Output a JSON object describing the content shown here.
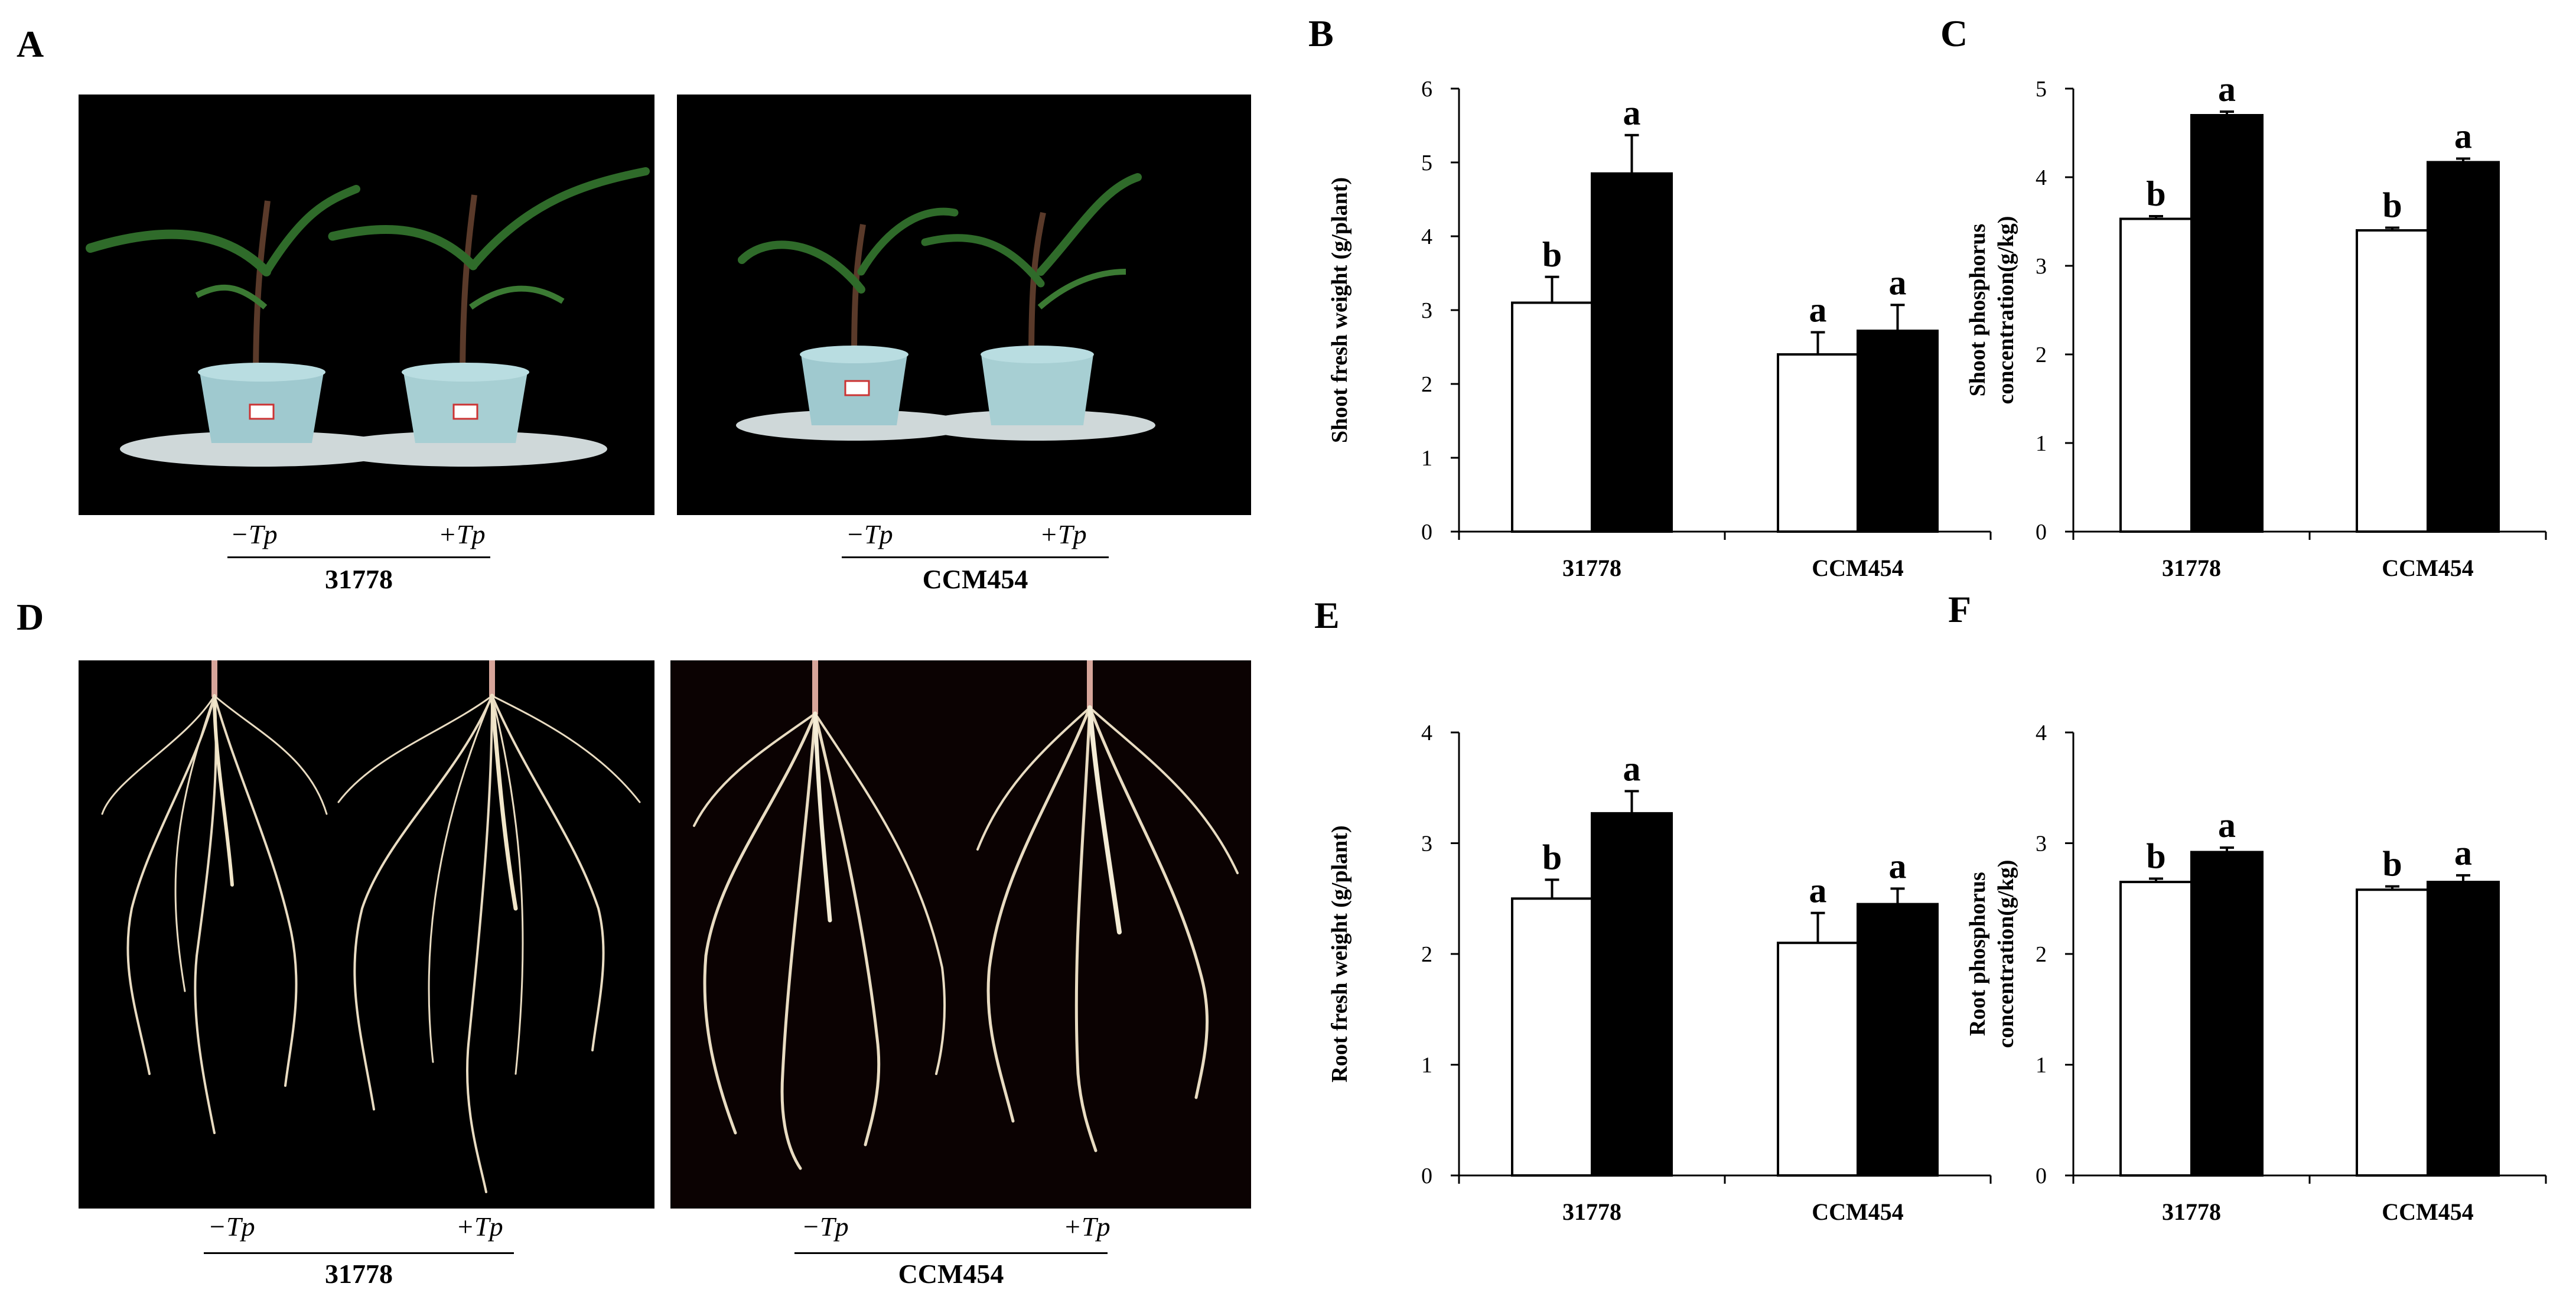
{
  "panels": {
    "A": {
      "letter": "A",
      "groups": [
        {
          "genotype": "31778",
          "conditions": [
            "−Tp",
            "+Tp"
          ]
        },
        {
          "genotype": "CCM454",
          "conditions": [
            "−Tp",
            "+Tp"
          ]
        }
      ]
    },
    "D": {
      "letter": "D",
      "groups": [
        {
          "genotype": "31778",
          "conditions": [
            "−Tp",
            "+Tp"
          ]
        },
        {
          "genotype": "CCM454",
          "conditions": [
            "−Tp",
            "+Tp"
          ]
        }
      ]
    }
  },
  "colors": {
    "photo_background": "#000000",
    "bar_minus_tp": "#ffffff",
    "bar_plus_tp": "#000000",
    "leaf": "#2f6b2a",
    "pot": "#9fc9cf",
    "root": "#e9dcc2"
  },
  "chart_data": [
    {
      "id": "B",
      "letter": "B",
      "type": "bar",
      "ylabel_lines": [
        "Shoot fresh weight (g/plant)"
      ],
      "categories": [
        "31778",
        "CCM454"
      ],
      "ylim": [
        0,
        6
      ],
      "yticks": [
        0,
        1,
        2,
        3,
        4,
        5,
        6
      ],
      "series": [
        {
          "values": [
            3.1,
            2.4
          ],
          "errors": [
            0.35,
            0.3
          ],
          "letters": [
            "b",
            "a"
          ]
        },
        {
          "values": [
            4.85,
            2.72
          ],
          "errors": [
            0.52,
            0.35
          ],
          "letters": [
            "a",
            "a"
          ]
        }
      ]
    },
    {
      "id": "C",
      "letter": "C",
      "type": "bar",
      "ylabel_lines": [
        "Shoot phosphorus",
        "concentration(g/kg)"
      ],
      "categories": [
        "31778",
        "CCM454"
      ],
      "ylim": [
        0,
        5
      ],
      "yticks": [
        0,
        1,
        2,
        3,
        4,
        5
      ],
      "series": [
        {
          "values": [
            3.53,
            3.4
          ],
          "errors": [
            0.03,
            0.03
          ],
          "letters": [
            "b",
            "b"
          ]
        },
        {
          "values": [
            4.7,
            4.17
          ],
          "errors": [
            0.04,
            0.04
          ],
          "letters": [
            "a",
            "a"
          ]
        }
      ]
    },
    {
      "id": "E",
      "letter": "E",
      "type": "bar",
      "ylabel_lines": [
        "Root fresh weight (g/plant)"
      ],
      "categories": [
        "31778",
        "CCM454"
      ],
      "ylim": [
        0,
        4
      ],
      "yticks": [
        0,
        1,
        2,
        3,
        4
      ],
      "series": [
        {
          "values": [
            2.5,
            2.1
          ],
          "errors": [
            0.17,
            0.27
          ],
          "letters": [
            "b",
            "a"
          ]
        },
        {
          "values": [
            3.27,
            2.45
          ],
          "errors": [
            0.2,
            0.14
          ],
          "letters": [
            "a",
            "a"
          ]
        }
      ]
    },
    {
      "id": "F",
      "letter": "F",
      "type": "bar",
      "ylabel_lines": [
        "Root phosphorus",
        "concentration(g/kg)"
      ],
      "categories": [
        "31778",
        "CCM454"
      ],
      "ylim": [
        0,
        4
      ],
      "yticks": [
        0,
        1,
        2,
        3,
        4
      ],
      "series": [
        {
          "values": [
            2.65,
            2.58
          ],
          "errors": [
            0.03,
            0.03
          ],
          "letters": [
            "b",
            "b"
          ]
        },
        {
          "values": [
            2.92,
            2.65
          ],
          "errors": [
            0.04,
            0.06
          ],
          "letters": [
            "a",
            "a"
          ]
        }
      ]
    }
  ]
}
